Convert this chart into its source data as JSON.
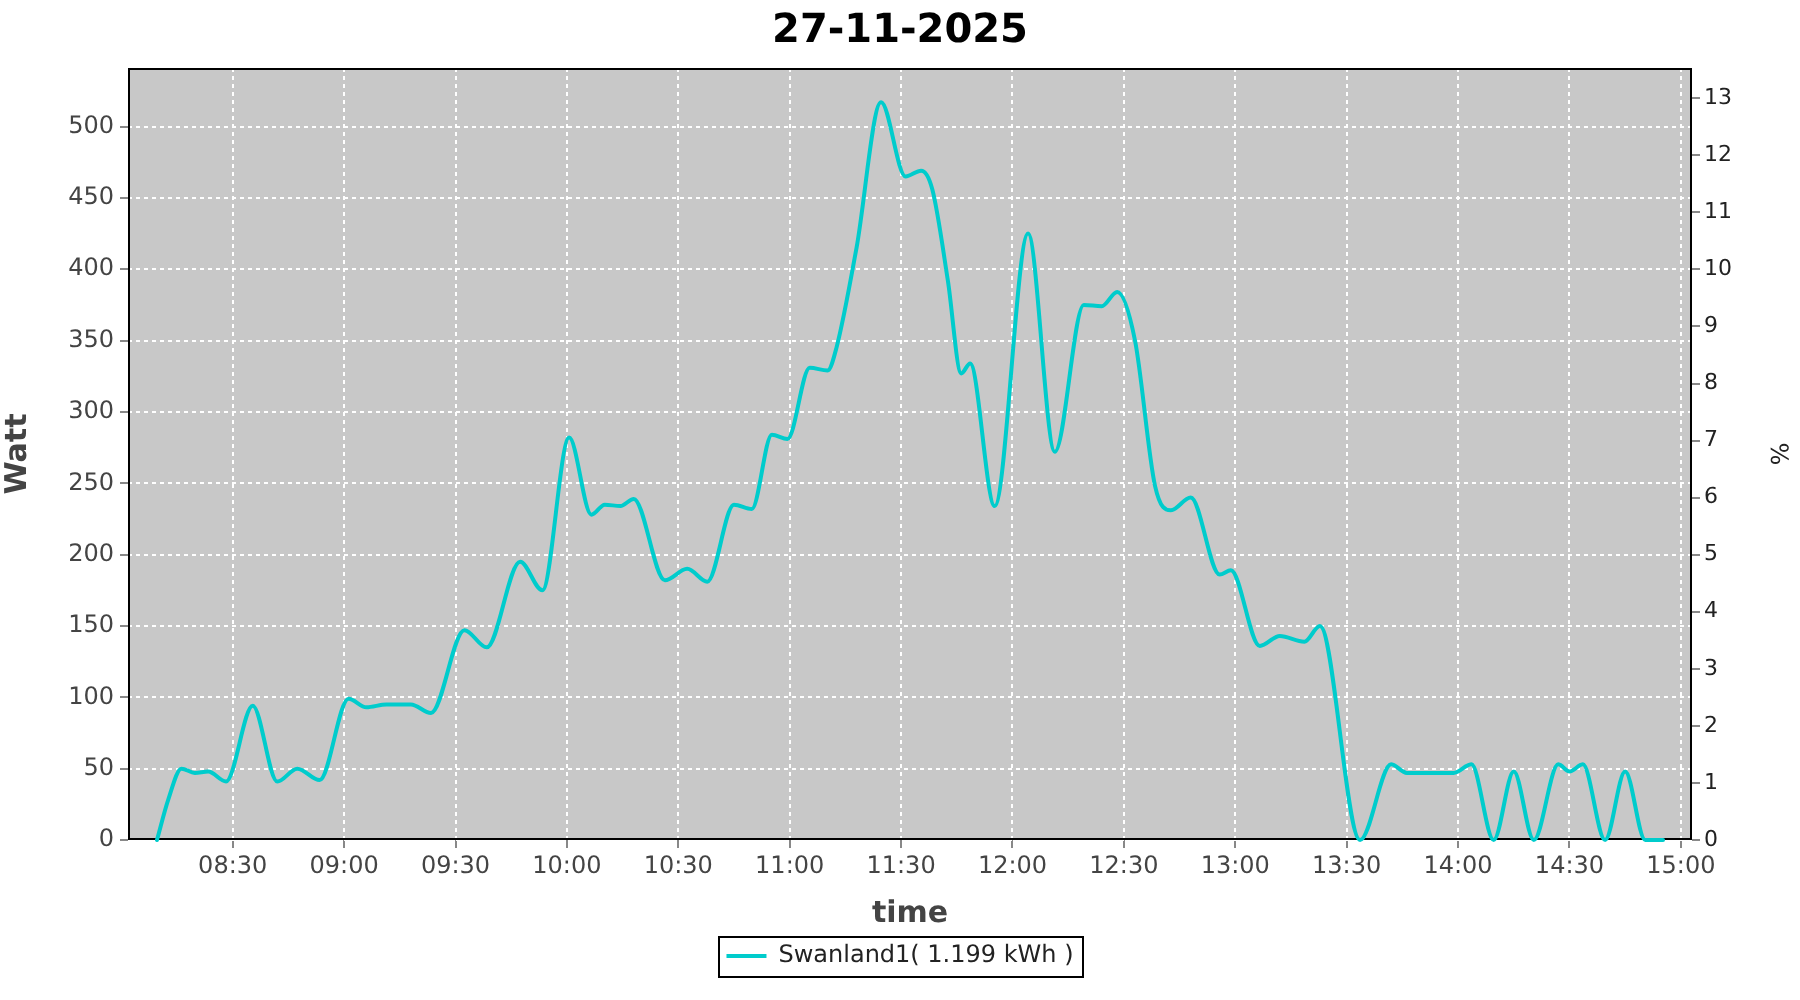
{
  "chart_data": {
    "type": "line",
    "title": "27-11-2025",
    "xlabel": "time",
    "ylabel": "Watt",
    "y2label": "%",
    "x": [
      8.16,
      8.21,
      8.27,
      8.33,
      8.39,
      8.47,
      8.59,
      8.7,
      8.79,
      8.89,
      9.02,
      9.1,
      9.19,
      9.3,
      9.39,
      9.54,
      9.64,
      9.79,
      9.89,
      10.01,
      10.11,
      10.17,
      10.24,
      10.3,
      10.44,
      10.54,
      10.63,
      10.75,
      10.83,
      10.92,
      10.99,
      11.09,
      11.17,
      11.21,
      11.3,
      11.41,
      11.52,
      11.59,
      11.64,
      11.71,
      11.77,
      11.81,
      11.92,
      12.07,
      12.19,
      12.32,
      12.4,
      12.47,
      12.55,
      12.64,
      12.71,
      12.8,
      12.93,
      12.98,
      13.11,
      13.2,
      13.31,
      13.38,
      13.56,
      13.7,
      13.77,
      13.9,
      13.98,
      14.06,
      14.16,
      14.25,
      14.34,
      14.45,
      14.5,
      14.56,
      14.66,
      14.75,
      14.84,
      14.92
    ],
    "series": [
      {
        "name": "Swanland1( 1.199 kWh )",
        "color": "#00cccc",
        "values": [
          0,
          28,
          50,
          47,
          48,
          41,
          94,
          41,
          50,
          42,
          99,
          93,
          95,
          95,
          89,
          147,
          135,
          195,
          175,
          282,
          228,
          235,
          234,
          239,
          182,
          190,
          181,
          235,
          232,
          284,
          281,
          331,
          329,
          345,
          415,
          517,
          465,
          469,
          456,
          392,
          327,
          334,
          234,
          425,
          272,
          375,
          374,
          384,
          350,
          248,
          231,
          240,
          186,
          189,
          136,
          143,
          139,
          150,
          0,
          53,
          47,
          47,
          47,
          53,
          0,
          48,
          0,
          53,
          48,
          53,
          0,
          48,
          0,
          0
        ]
      }
    ],
    "xlim": [
      8.03,
      15.05
    ],
    "xticks": [
      {
        "value": 8.5,
        "label": "08:30"
      },
      {
        "value": 9,
        "label": "09:00"
      },
      {
        "value": 9.5,
        "label": "09:30"
      },
      {
        "value": 10,
        "label": "10:00"
      },
      {
        "value": 10.5,
        "label": "10:30"
      },
      {
        "value": 11,
        "label": "11:00"
      },
      {
        "value": 11.5,
        "label": "11:30"
      },
      {
        "value": 12,
        "label": "12:00"
      },
      {
        "value": 12.5,
        "label": "12:30"
      },
      {
        "value": 13,
        "label": "13:00"
      },
      {
        "value": 13.5,
        "label": "13:30"
      },
      {
        "value": 14,
        "label": "14:00"
      },
      {
        "value": 14.5,
        "label": "14:30"
      },
      {
        "value": 15,
        "label": "15:00"
      }
    ],
    "ylim": [
      0,
      541
    ],
    "yticks": [
      0,
      50,
      100,
      150,
      200,
      250,
      300,
      350,
      400,
      450,
      500
    ],
    "y2lim": [
      0,
      13.53
    ],
    "y2ticks": [
      0,
      1,
      2,
      3,
      4,
      5,
      6,
      7,
      8,
      9,
      10,
      11,
      12,
      13
    ],
    "grid": true,
    "legend": "bottom"
  }
}
